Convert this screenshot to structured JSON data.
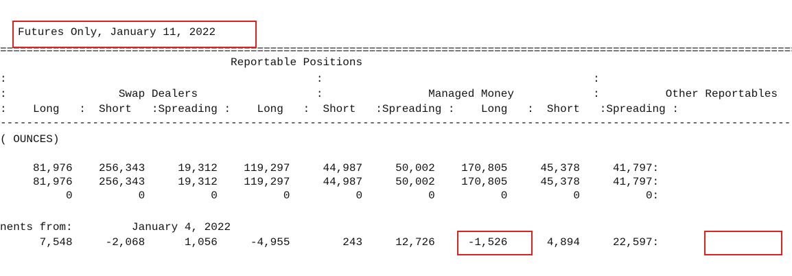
{
  "document": {
    "title": "Futures Only, January 11, 2022",
    "lines": [
      "=========================================================================================================================",
      "                                   Reportable Positions                                                                 :",
      ":                                               :                                         :                             :",
      ":                 Swap Dealers                  :                Managed Money            :          Other Reportables  :",
      ":    Long   :  Short   :Spreading :    Long   :  Short   :Spreading :    Long   :  Short   :Spreading :",
      "-------------------------------------------------------------------------------------------------------------------------",
      "( OUNCES)                                                                                                                 :",
      "                                                                                                                         :",
      "     81,976    256,343     19,312    119,297     44,987     50,002    170,805     45,378     41,797:",
      "     81,976    256,343     19,312    119,297     44,987     50,002    170,805     45,378     41,797:",
      "          0          0          0          0          0          0          0          0          0:",
      "                                                                                                                         :",
      "nents from:         January 4, 2022                                                                                       :",
      "      7,548     -2,068      1,056     -4,955        243     12,726     -1,526      4,894     22,597:"
    ]
  },
  "highlights": {
    "color": "#e0201c",
    "items": [
      "Futures Only, January 11, 2022",
      "12,726",
      "22,597:"
    ]
  }
}
